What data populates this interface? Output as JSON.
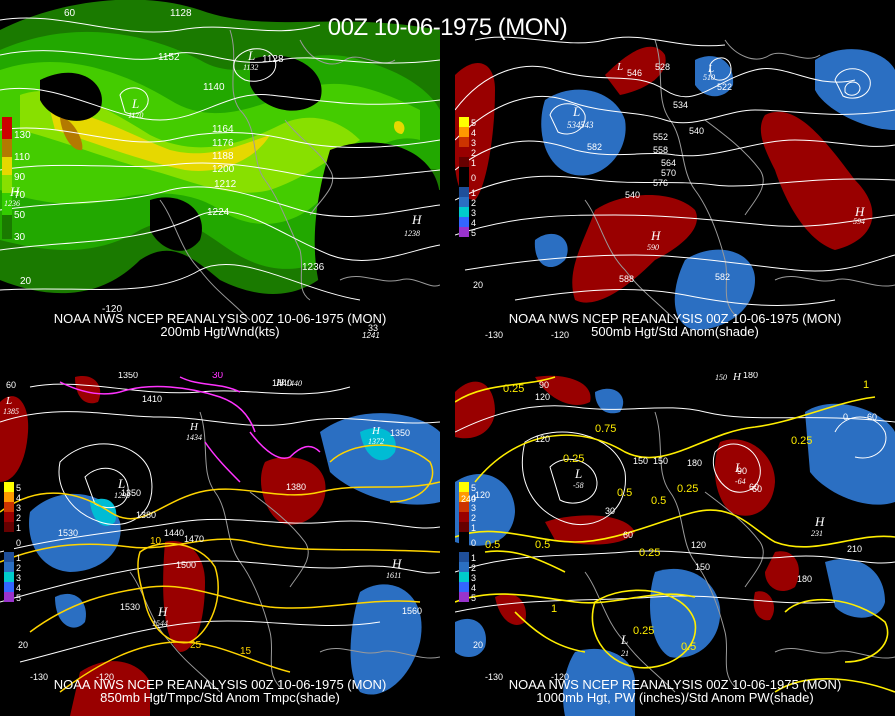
{
  "title": "00Z 10-06-1975 (MON)",
  "colors": {
    "contour": "#ffffff",
    "coast": "#9a9a9a",
    "red": "#990000",
    "blue": "#2b6fc2",
    "yellow": "#ffff00",
    "magenta": "#ff33ff",
    "green": "#33cc00"
  },
  "panels": [
    {
      "id": "p200",
      "line1": "NOAA NWS NCEP REANALYSIS 00Z 10-06-1975 (MON)",
      "line2": "200mb Hgt/Wnd(kts)",
      "legend": [
        "130",
        "110",
        "90",
        "70",
        "50",
        "30"
      ],
      "contours": [
        "1128",
        "1152",
        "1128",
        "1140",
        "1164",
        "1176",
        "1188",
        "1200",
        "1212",
        "1224",
        "1236"
      ],
      "extra": [
        "60",
        "20",
        "-120"
      ],
      "lows": [
        {
          "letter": "L",
          "value": "1132"
        },
        {
          "letter": "L",
          "value": "1170"
        }
      ],
      "highs": [
        {
          "letter": "H",
          "value": "1236"
        },
        {
          "letter": "H",
          "value": "1238"
        }
      ],
      "corner": [
        "33",
        "1241"
      ]
    },
    {
      "id": "p500",
      "line1": "NOAA NWS NCEP REANALYSIS 00Z 10-06-1975 (MON)",
      "line2": "500mb Hgt/Std Anom(shade)",
      "legend": [
        "5",
        "4",
        "3",
        "2",
        "1",
        "0",
        "1",
        "2",
        "3",
        "4",
        "5"
      ],
      "contours": [
        "528",
        "546",
        "534",
        "540",
        "522",
        "552",
        "558",
        "564",
        "570",
        "576",
        "582",
        "540",
        "588",
        "582"
      ],
      "extra": [
        "20",
        "-130",
        "-120"
      ],
      "lows": [
        {
          "letter": "L",
          "value": "534"
        },
        {
          "letter": "L",
          "value": "543"
        },
        {
          "letter": "L",
          "value": "510"
        }
      ],
      "highs": [
        {
          "letter": "H",
          "value": "590"
        },
        {
          "letter": "H",
          "value": "594"
        }
      ]
    },
    {
      "id": "p850",
      "line1": "NOAA NWS NCEP REANALYSIS 00Z 10-06-1975 (MON)",
      "line2": "850mb Hgt/Tmpc/Std Anom Tmpc(shade)",
      "legend": [
        "5",
        "4",
        "3",
        "2",
        "1",
        "0",
        "1",
        "2",
        "3",
        "4",
        "5"
      ],
      "contours": [
        "1350",
        "1410",
        "1440",
        "1380",
        "1350",
        "1440",
        "1470",
        "1500",
        "1530",
        "1530",
        "1560",
        "1380",
        "1350"
      ],
      "extra": [
        "60",
        "20",
        "-130",
        "-120",
        "30",
        "25",
        "15",
        "10"
      ],
      "lows": [
        {
          "letter": "L",
          "value": "1293"
        },
        {
          "letter": "L",
          "value": "1385"
        }
      ],
      "highs": [
        {
          "letter": "H",
          "value": "1434"
        },
        {
          "letter": "H",
          "value": "1440"
        },
        {
          "letter": "H",
          "value": "1544"
        },
        {
          "letter": "H",
          "value": "1611"
        },
        {
          "letter": "H",
          "value": "1372"
        }
      ]
    },
    {
      "id": "p1000",
      "line1": "NOAA NWS NCEP REANALYSIS 00Z 10-06-1975 (MON)",
      "line2": "1000mb Hgt, PW (inches)/Std Anom PW(shade)",
      "legend": [
        "5",
        "4",
        "3",
        "2",
        "1",
        "0",
        "1",
        "2",
        "3",
        "4",
        "5"
      ],
      "contours": [
        "120",
        "90",
        "120",
        "150",
        "180",
        "180",
        "150",
        "120",
        "30",
        "60",
        "60",
        "90",
        "120",
        "150",
        "180",
        "210",
        "240",
        "60",
        "60",
        "0"
      ],
      "pw": [
        "0.25",
        "0.25",
        "0.5",
        "0.25",
        "0.5",
        "0.75",
        "0.5",
        "0.25",
        "0.25",
        "0.5",
        "0.5",
        "1",
        "1",
        "0.25"
      ],
      "extra": [
        "20",
        "-120",
        "-130"
      ],
      "lows": [
        {
          "letter": "L",
          "value": "-58"
        },
        {
          "letter": "L",
          "value": "-64"
        },
        {
          "letter": "L",
          "value": "21"
        }
      ],
      "highs": [
        {
          "letter": "H",
          "value": "231"
        },
        {
          "letter": "H",
          "value": "150"
        }
      ]
    }
  ]
}
